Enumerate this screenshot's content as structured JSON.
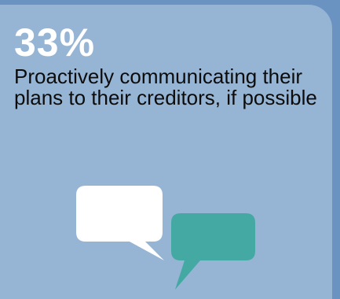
{
  "stat": {
    "value": "33%",
    "description": "Proactively communicating their plans to their creditors, if possible"
  },
  "colors": {
    "background": "#6b93c2",
    "card": "#96b4d4",
    "value_text": "#ffffff",
    "body_text": "#0c0c0c",
    "bubble_primary": "#ffffff",
    "bubble_secondary": "#45a9a3"
  },
  "icons": {
    "illustration": "speech-bubbles-icon"
  }
}
